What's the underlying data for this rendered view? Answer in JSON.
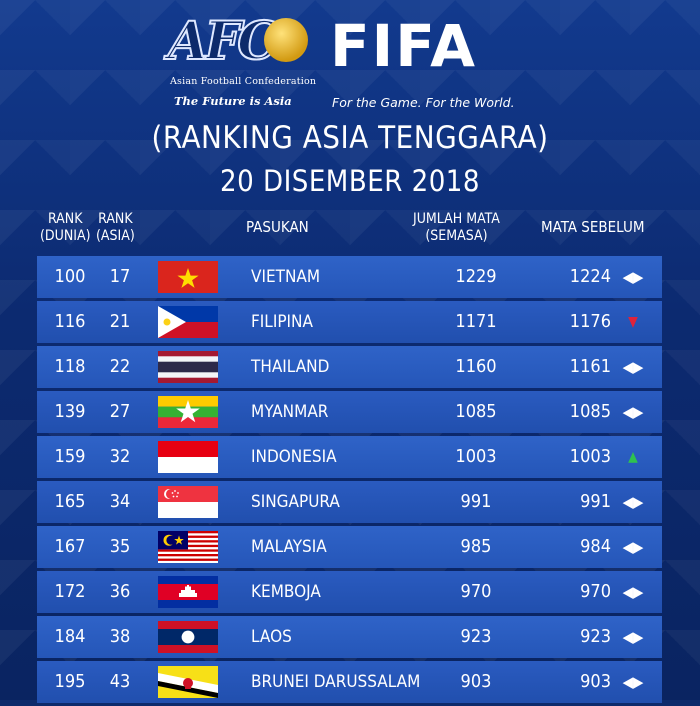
{
  "brand": {
    "afc_letters": "AFC",
    "afc_name": "Asian Football Confederation",
    "afc_tagline": "The Future is Asia",
    "fifa_name": "FIFA",
    "fifa_tagline": "For the Game. For the World."
  },
  "title": "(RANKING ASIA TENGGARA)",
  "date": "20 DISEMBER 2018",
  "headers": {
    "rank_dunia_line1": "RANK",
    "rank_dunia_line2": "(DUNIA)",
    "rank_asia_line1": "RANK",
    "rank_asia_line2": "(ASIA)",
    "team": "PASUKAN",
    "points_line1": "JUMLAH MATA",
    "points_line2": "(SEMASA)",
    "previous": "MATA SEBELUM"
  },
  "rows": [
    {
      "rank_world": "100",
      "rank_asia": "17",
      "flag": "vietnam-flag",
      "team": "VIETNAM",
      "points": "1229",
      "previous": "1224",
      "change": "same",
      "change_icon": "◀▶"
    },
    {
      "rank_world": "116",
      "rank_asia": "21",
      "flag": "philippines-flag",
      "team": "FILIPINA",
      "points": "1171",
      "previous": "1176",
      "change": "down",
      "change_icon": "▼"
    },
    {
      "rank_world": "118",
      "rank_asia": "22",
      "flag": "thailand-flag",
      "team": "THAILAND",
      "points": "1160",
      "previous": "1161",
      "change": "same",
      "change_icon": "◀▶"
    },
    {
      "rank_world": "139",
      "rank_asia": "27",
      "flag": "myanmar-flag",
      "team": "MYANMAR",
      "points": "1085",
      "previous": "1085",
      "change": "same",
      "change_icon": "◀▶"
    },
    {
      "rank_world": "159",
      "rank_asia": "32",
      "flag": "indonesia-flag",
      "team": "INDONESIA",
      "points": "1003",
      "previous": "1003",
      "change": "up",
      "change_icon": "▲"
    },
    {
      "rank_world": "165",
      "rank_asia": "34",
      "flag": "singapore-flag",
      "team": "SINGAPURA",
      "points": "991",
      "previous": "991",
      "change": "same",
      "change_icon": "◀▶"
    },
    {
      "rank_world": "167",
      "rank_asia": "35",
      "flag": "malaysia-flag",
      "team": "MALAYSIA",
      "points": "985",
      "previous": "984",
      "change": "same",
      "change_icon": "◀▶"
    },
    {
      "rank_world": "172",
      "rank_asia": "36",
      "flag": "cambodia-flag",
      "team": "KEMBOJA",
      "points": "970",
      "previous": "970",
      "change": "same",
      "change_icon": "◀▶"
    },
    {
      "rank_world": "184",
      "rank_asia": "38",
      "flag": "laos-flag",
      "team": "LAOS",
      "points": "923",
      "previous": "923",
      "change": "same",
      "change_icon": "◀▶"
    },
    {
      "rank_world": "195",
      "rank_asia": "43",
      "flag": "brunei-flag",
      "team": "BRUNEI DARUSSALAM",
      "points": "903",
      "previous": "903",
      "change": "same",
      "change_icon": "◀▶"
    }
  ],
  "colors": {
    "background": "#0d2a6b",
    "row": "#2f63c8",
    "down": "#e0233a",
    "up": "#2fc24f"
  }
}
